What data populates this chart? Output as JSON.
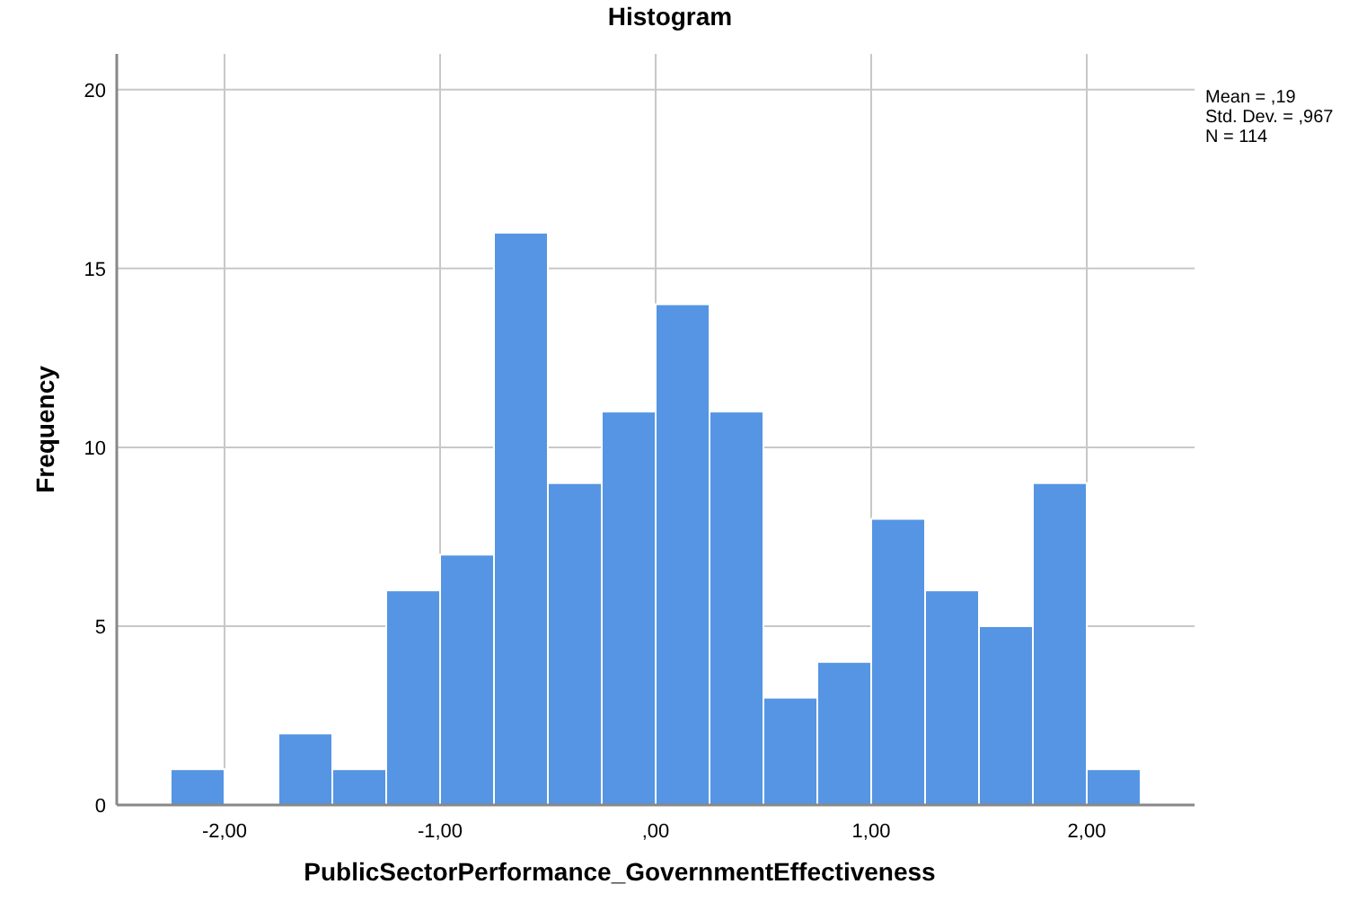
{
  "chart_data": {
    "type": "histogram",
    "title": "Histogram",
    "xlabel": "PublicSectorPerformance_GovernmentEffectiveness",
    "ylabel": "Frequency",
    "bins": [
      -2.25,
      -2,
      -1.75,
      -1.5,
      -1.25,
      -1,
      -0.75,
      -0.5,
      -0.25,
      0,
      0.25,
      0.5,
      0.75,
      1,
      1.25,
      1.5,
      1.75,
      2,
      2.25
    ],
    "values": [
      1,
      0,
      2,
      1,
      6,
      7,
      16,
      9,
      11,
      14,
      11,
      3,
      4,
      8,
      6,
      5,
      9,
      1
    ],
    "color": "#5595e3",
    "xlim": [
      -2.5,
      2.5
    ],
    "xticks": [
      {
        "value": -2,
        "label": "-2,00"
      },
      {
        "value": -1,
        "label": "-1,00"
      },
      {
        "value": 0,
        "label": ",00"
      },
      {
        "value": 1,
        "label": "1,00"
      },
      {
        "value": 2,
        "label": "2,00"
      }
    ],
    "ylim": [
      0,
      21
    ],
    "yticks": [
      0,
      5,
      10,
      15,
      20
    ],
    "grid": true,
    "annotations": [
      "Mean = ,19",
      "Std. Dev. = ,967",
      "N = 114"
    ]
  }
}
